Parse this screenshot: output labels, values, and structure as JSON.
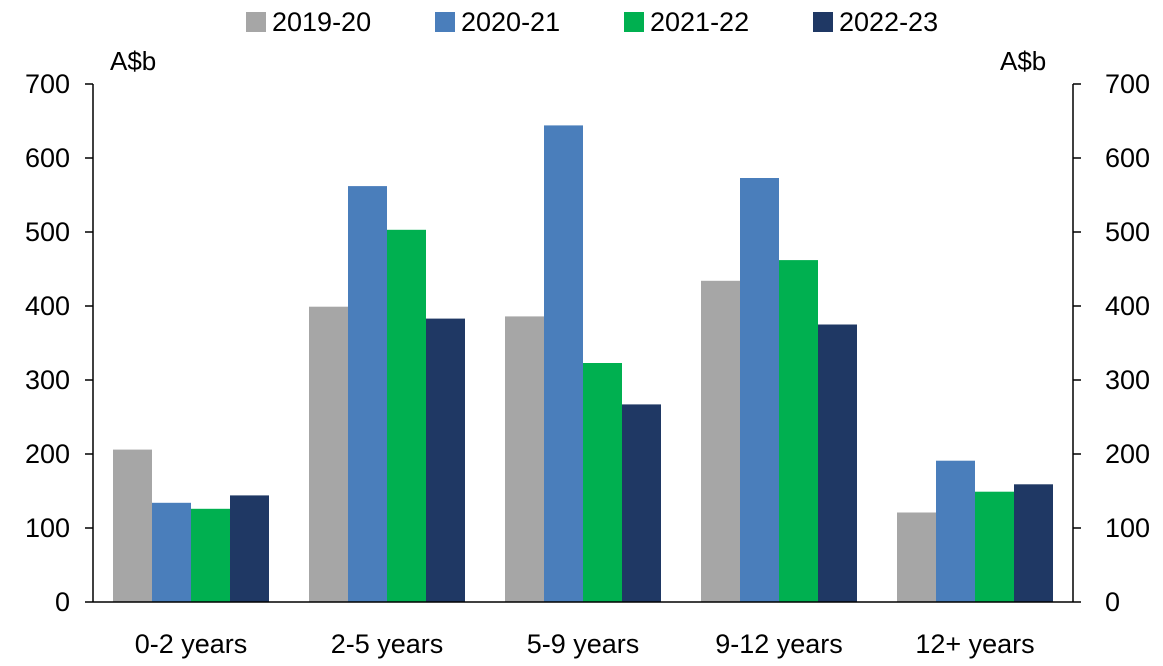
{
  "chart_data": {
    "type": "bar",
    "categories": [
      "0-2 years",
      "2-5 years",
      "5-9 years",
      "9-12 years",
      "12+ years"
    ],
    "series": [
      {
        "name": "2019-20",
        "color": "#a6a6a6",
        "values": [
          206,
          399,
          386,
          434,
          121
        ]
      },
      {
        "name": "2020-21",
        "color": "#4a7ebb",
        "values": [
          134,
          562,
          644,
          573,
          191
        ]
      },
      {
        "name": "2021-22",
        "color": "#00b050",
        "values": [
          126,
          503,
          323,
          462,
          149
        ]
      },
      {
        "name": "2022-23",
        "color": "#1f3864",
        "values": [
          144,
          383,
          267,
          375,
          159
        ]
      }
    ],
    "y_unit_left": "A$b",
    "y_unit_right": "A$b",
    "ylim": [
      0,
      700
    ],
    "yticks": [
      0,
      100,
      200,
      300,
      400,
      500,
      600,
      700
    ],
    "grid": false,
    "legend_position": "top-center"
  }
}
